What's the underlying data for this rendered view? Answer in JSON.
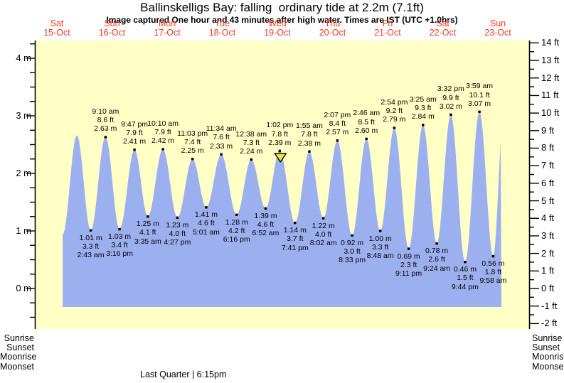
{
  "header": {
    "title": "Ballinskelligs Bay: falling  ordinary tide at 2.2m (7.1ft)",
    "subtitle": "Image captured One hour and 43 minutes after high water. Times are IST (UTC +1.0hrs)"
  },
  "chart_data": {
    "type": "area",
    "title": "Ballinskelligs Bay: falling  ordinary tide at 2.2m (7.1ft)",
    "subtitle": "Image captured One hour and 43 minutes after high water. Times are IST (UTC +1.0hrs)",
    "days": [
      {
        "name": "Sat",
        "date": "15-Oct"
      },
      {
        "name": "Sun",
        "date": "16-Oct"
      },
      {
        "name": "Mon",
        "date": "17-Oct"
      },
      {
        "name": "Tue",
        "date": "18-Oct"
      },
      {
        "name": "Wed",
        "date": "19-Oct"
      },
      {
        "name": "Thu",
        "date": "20-Oct"
      },
      {
        "name": "Fri",
        "date": "21-Oct"
      },
      {
        "name": "Sat",
        "date": "22-Oct"
      },
      {
        "name": "Sun",
        "date": "23-Oct"
      }
    ],
    "y_left_unit": "m",
    "y_left_ticks_m": [
      4,
      3,
      2,
      1,
      0
    ],
    "y_right_unit": "ft",
    "y_right_ticks_ft": [
      14,
      13,
      12,
      11,
      10,
      9,
      8,
      7,
      6,
      5,
      4,
      3,
      2,
      1,
      0,
      -1,
      -2
    ],
    "ylim_m": [
      -0.65,
      4.3
    ],
    "grid": false,
    "extrema": [
      {
        "type": "low",
        "day": 0,
        "hour": 14.45,
        "m": 0.93,
        "labeled": false
      },
      {
        "type": "high",
        "day": 0,
        "hour": 20.7,
        "m": 2.66,
        "labeled": false
      },
      {
        "type": "low",
        "day": 1,
        "hour": 2.72,
        "time": "2:43 am",
        "m": 1.01,
        "ft": 3.3,
        "labeled": true
      },
      {
        "type": "high",
        "day": 1,
        "hour": 9.17,
        "time": "9:10 am",
        "m": 2.63,
        "ft": 8.6,
        "labeled": true
      },
      {
        "type": "low",
        "day": 1,
        "hour": 15.27,
        "time": "3:16 pm",
        "m": 1.03,
        "ft": 3.4,
        "labeled": true
      },
      {
        "type": "high",
        "day": 1,
        "hour": 21.78,
        "time": "9:47 pm",
        "m": 2.41,
        "ft": 7.9,
        "labeled": true
      },
      {
        "type": "low",
        "day": 2,
        "hour": 3.58,
        "time": "3:35 am",
        "m": 1.25,
        "ft": 4.1,
        "labeled": true
      },
      {
        "type": "high",
        "day": 2,
        "hour": 10.17,
        "time": "10:10 am",
        "m": 2.42,
        "ft": 7.9,
        "labeled": true
      },
      {
        "type": "low",
        "day": 2,
        "hour": 16.45,
        "time": "4:27 pm",
        "m": 1.23,
        "ft": 4.0,
        "labeled": true
      },
      {
        "type": "high",
        "day": 2,
        "hour": 23.05,
        "time": "11:03 pm",
        "m": 2.25,
        "ft": 7.4,
        "labeled": true
      },
      {
        "type": "low",
        "day": 3,
        "hour": 5.02,
        "time": "5:01 am",
        "m": 1.41,
        "ft": 4.6,
        "labeled": true
      },
      {
        "type": "high",
        "day": 3,
        "hour": 11.57,
        "time": "11:34 am",
        "m": 2.33,
        "ft": 7.6,
        "labeled": true
      },
      {
        "type": "low",
        "day": 3,
        "hour": 18.27,
        "time": "6:16 pm",
        "m": 1.28,
        "ft": 4.2,
        "labeled": true
      },
      {
        "type": "high",
        "day": 4,
        "hour": 0.63,
        "time": "12:38 am",
        "m": 2.24,
        "ft": 7.3,
        "labeled": true
      },
      {
        "type": "low",
        "day": 4,
        "hour": 6.87,
        "time": "6:52 am",
        "m": 1.39,
        "ft": 4.6,
        "labeled": true
      },
      {
        "type": "high",
        "day": 4,
        "hour": 13.03,
        "time": "1:02 pm",
        "m": 2.39,
        "ft": 7.8,
        "labeled": true,
        "marker": true
      },
      {
        "type": "low",
        "day": 4,
        "hour": 19.68,
        "time": "7:41 pm",
        "m": 1.14,
        "ft": 3.7,
        "labeled": true
      },
      {
        "type": "high",
        "day": 5,
        "hour": 1.92,
        "time": "1:55 am",
        "m": 2.38,
        "ft": 7.8,
        "labeled": true
      },
      {
        "type": "low",
        "day": 5,
        "hour": 8.03,
        "time": "8:02 am",
        "m": 1.22,
        "ft": 4.0,
        "labeled": true
      },
      {
        "type": "high",
        "day": 5,
        "hour": 14.12,
        "time": "2:07 pm",
        "m": 2.57,
        "ft": 8.4,
        "labeled": true
      },
      {
        "type": "low",
        "day": 5,
        "hour": 20.55,
        "time": "8:33 pm",
        "m": 0.92,
        "ft": 3.0,
        "labeled": true
      },
      {
        "type": "high",
        "day": 6,
        "hour": 2.77,
        "time": "2:46 am",
        "m": 2.6,
        "ft": 8.5,
        "labeled": true
      },
      {
        "type": "low",
        "day": 6,
        "hour": 8.8,
        "time": "8:48 am",
        "m": 1.0,
        "ft": 3.3,
        "labeled": true
      },
      {
        "type": "high",
        "day": 6,
        "hour": 14.9,
        "time": "2:54 pm",
        "m": 2.79,
        "ft": 9.2,
        "labeled": true
      },
      {
        "type": "low",
        "day": 6,
        "hour": 21.18,
        "time": "9:11 pm",
        "m": 0.69,
        "ft": 2.3,
        "labeled": true
      },
      {
        "type": "high",
        "day": 7,
        "hour": 3.42,
        "time": "3:25 am",
        "m": 2.84,
        "ft": 9.3,
        "labeled": true
      },
      {
        "type": "low",
        "day": 7,
        "hour": 9.4,
        "time": "9:24 am",
        "m": 0.78,
        "ft": 2.6,
        "labeled": true
      },
      {
        "type": "high",
        "day": 7,
        "hour": 15.53,
        "time": "3:32 pm",
        "m": 3.02,
        "ft": 9.9,
        "labeled": true
      },
      {
        "type": "low",
        "day": 7,
        "hour": 21.73,
        "time": "9:44 pm",
        "m": 0.46,
        "ft": 1.5,
        "labeled": true
      },
      {
        "type": "high",
        "day": 8,
        "hour": 3.98,
        "time": "3:59 am",
        "m": 3.07,
        "ft": 10.1,
        "labeled": true
      },
      {
        "type": "low",
        "day": 8,
        "hour": 9.97,
        "time": "9:58 am",
        "m": 0.56,
        "ft": 1.8,
        "labeled": true
      },
      {
        "type": "high",
        "day": 8,
        "hour": 14.6,
        "m": 3.05,
        "labeled": false
      }
    ],
    "current_marker_at": "1:02 pm"
  },
  "astro": {
    "left_labels": [
      "Sunrise",
      "Sunset",
      "Moonrise",
      "Moonset"
    ],
    "right_labels": [
      "Sunrise",
      "Sunset",
      "Moonrise",
      "Moonset"
    ],
    "moon_phase": "Last Quarter | 6:15pm"
  },
  "colors": {
    "plot_bg": "#ffffc6",
    "tide_fill": "#9cb0f0",
    "day_label": "#f93822",
    "marker_fill": "#f6e13d",
    "axis": "#000000"
  }
}
